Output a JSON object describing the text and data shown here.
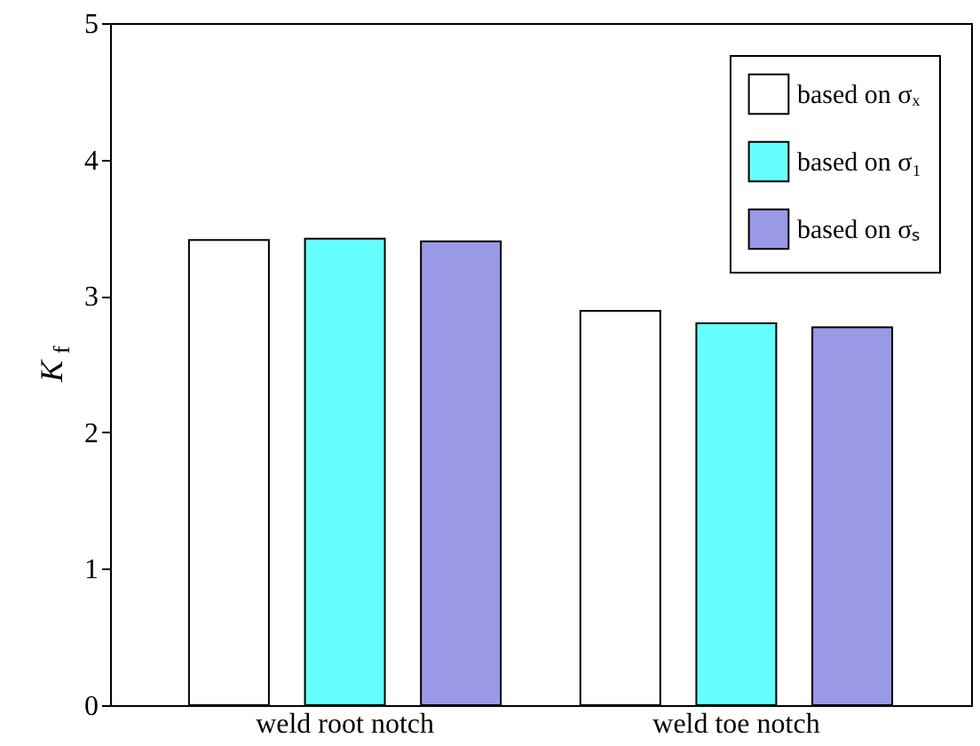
{
  "chart_data": {
    "type": "bar",
    "ylabel": "K$_{f}$",
    "categories": [
      "weld root notch",
      "weld toe notch"
    ],
    "series": [
      {
        "name": "based on σₓ",
        "color": "#ffffff",
        "values": [
          3.41,
          2.89
        ]
      },
      {
        "name": "based on σ₁",
        "color": "#66ffff",
        "values": [
          3.42,
          2.8
        ]
      },
      {
        "name": "based on σₛ",
        "color": "#9999e6",
        "values": [
          3.4,
          2.77
        ]
      }
    ],
    "ylim": [
      0,
      5
    ],
    "yticks": [
      0,
      1,
      2,
      3,
      4,
      5
    ],
    "grid": false,
    "legend": "top right"
  }
}
